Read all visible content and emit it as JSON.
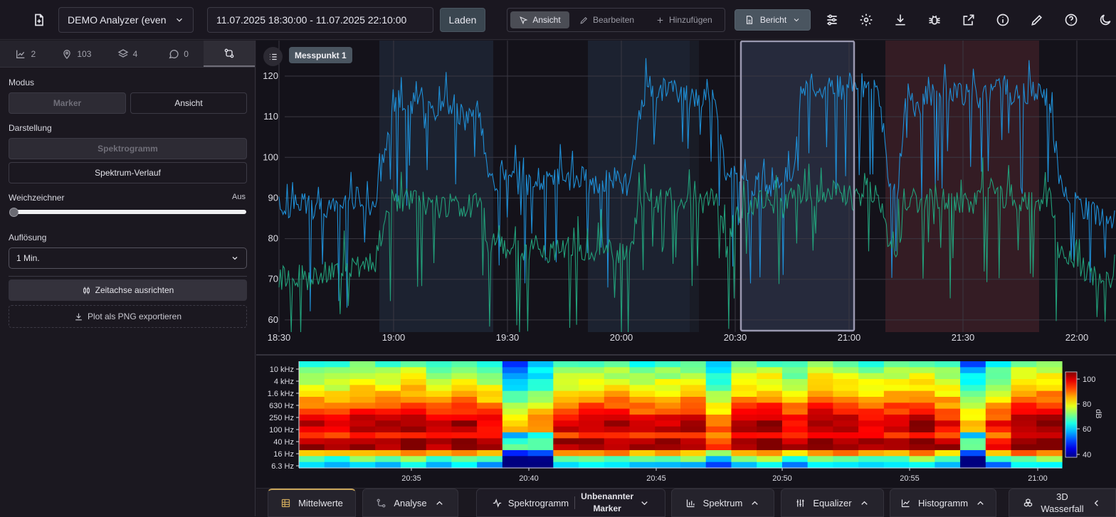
{
  "topbar": {
    "analyzer_select": "DEMO Analyzer (even",
    "time_range": "11.07.2025 18:30:00 - 11.07.2025 22:10:00",
    "load_label": "Laden",
    "mode_view": "Ansicht",
    "mode_edit": "Bearbeiten",
    "mode_add": "Hinzufügen",
    "report_label": "Bericht",
    "icons": [
      "new-file-icon",
      "sliders-icon",
      "settings-icon",
      "download-icon",
      "bug-icon",
      "external-link-icon",
      "info-icon",
      "pencil-icon",
      "help-icon",
      "moon-icon"
    ]
  },
  "sidebar": {
    "tabs": [
      {
        "icon": "chart-icon",
        "count": "2"
      },
      {
        "icon": "location-icon",
        "count": "103"
      },
      {
        "icon": "layers-icon",
        "count": "4"
      },
      {
        "icon": "comment-icon",
        "count": "0"
      },
      {
        "icon": "route-icon",
        "count": ""
      }
    ],
    "modus_label": "Modus",
    "modus_marker": "Marker",
    "modus_view": "Ansicht",
    "darstellung_label": "Darstellung",
    "spektrogramm": "Spektrogramm",
    "spektrum_verlauf": "Spektrum-Verlauf",
    "weichzeichner_label": "Weichzeichner",
    "weichzeichner_value": "Aus",
    "aufloesung_label": "Auflösung",
    "aufloesung_value": "1 Min.",
    "align_label": "Zeitachse ausrichten",
    "export_label": "Plot als PNG exportieren"
  },
  "chart_data": [
    {
      "type": "line",
      "legend_tag": "Messpunkt 1",
      "x_ticks": [
        "18:30",
        "19:00",
        "19:30",
        "20:00",
        "20:30",
        "21:00",
        "21:30",
        "22:00"
      ],
      "y_ticks": [
        60,
        70,
        80,
        90,
        100,
        110,
        120
      ],
      "ylim": [
        57,
        127
      ],
      "series": [
        {
          "color": "#1f8fd6",
          "values": [
            88,
            87,
            89,
            88,
            87,
            88,
            89,
            88,
            90,
            89,
            88,
            100,
            112,
            114,
            113,
            115,
            111,
            113,
            112,
            110,
            108,
            112,
            95,
            94,
            95,
            94,
            93,
            95,
            94,
            96,
            95,
            94,
            95,
            93,
            94,
            95,
            94,
            93,
            112,
            118,
            116,
            118,
            116,
            115,
            114,
            117,
            112,
            96,
            94,
            97,
            93,
            94,
            91,
            95,
            96,
            118,
            118,
            117,
            119,
            117,
            118,
            119,
            116,
            118,
            96,
            92,
            116,
            111,
            116,
            115,
            116,
            117,
            115,
            116,
            114,
            117,
            118,
            116,
            115,
            116,
            115,
            114,
            95,
            90,
            88,
            87,
            86,
            85,
            84
          ]
        },
        {
          "color": "#22a07a",
          "values": [
            70,
            70,
            71,
            70,
            71,
            72,
            71,
            73,
            72,
            74,
            73,
            84,
            90,
            89,
            90,
            88,
            90,
            87,
            89,
            88,
            87,
            89,
            79,
            78,
            77,
            78,
            77,
            78,
            76,
            77,
            78,
            77,
            76,
            77,
            77,
            77,
            76,
            77,
            90,
            91,
            89,
            90,
            89,
            90,
            88,
            90,
            89,
            78,
            86,
            87,
            88,
            90,
            89,
            88,
            90,
            91,
            91,
            90,
            92,
            91,
            89,
            90,
            91,
            91,
            80,
            78,
            90,
            89,
            90,
            91,
            89,
            90,
            88,
            89,
            90,
            91,
            90,
            91,
            88,
            89,
            88,
            90,
            78,
            75,
            73,
            72,
            71,
            70,
            68
          ]
        }
      ]
    },
    {
      "type": "heatmap",
      "title": "Spektrogramm",
      "y_ticks": [
        "10 kHz",
        "4 kHz",
        "1.6 kHz",
        "630 Hz",
        "250 Hz",
        "100 Hz",
        "40 Hz",
        "16 Hz",
        "6.3 Hz"
      ],
      "x_ticks": [
        "20:35",
        "20:40",
        "20:45",
        "20:50",
        "20:55",
        "21:00"
      ],
      "colorbar_ticks": [
        100,
        80,
        60,
        40
      ],
      "colorbar_label": "dB",
      "value_range": [
        40,
        100
      ]
    }
  ],
  "bottombar": {
    "mittelwerte": "Mittelwerte",
    "analyse": "Analyse",
    "spektrogramm": "Spektrogramm",
    "marker_line1": "Unbenannter",
    "marker_line2": "Marker",
    "spektrum": "Spektrum",
    "equalizer": "Equalizer",
    "histogramm": "Histogramm",
    "wasserfall_line1": "3D",
    "wasserfall_line2": "Wasserfall"
  }
}
